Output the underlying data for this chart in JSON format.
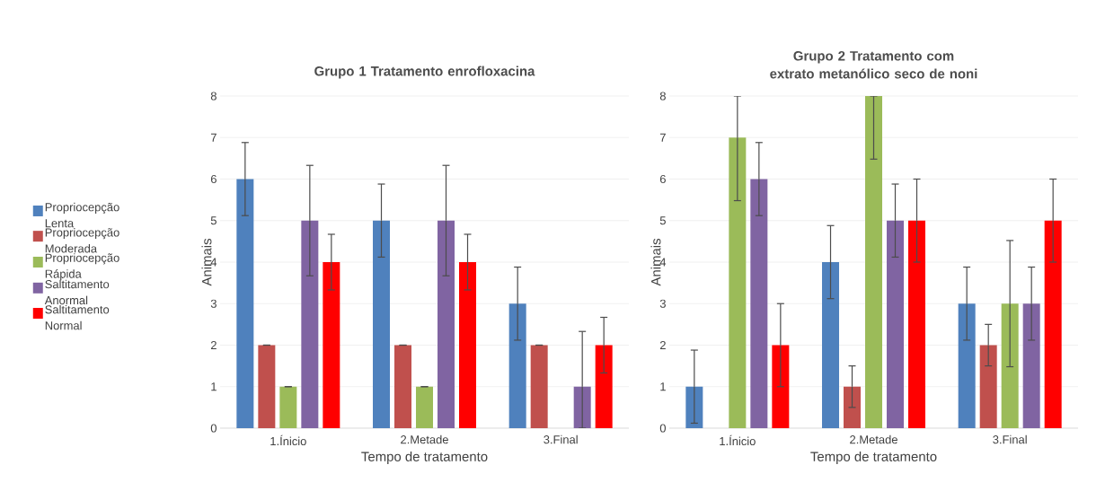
{
  "chart_data": [
    {
      "type": "bar",
      "title": "Grupo 1 Tratamento enrofloxacina",
      "xlabel": "Tempo de tratamento",
      "ylabel": "Animais",
      "categories": [
        "1.Ínicio",
        "2.Metade",
        "3.Final"
      ],
      "ylim": [
        0,
        8
      ],
      "yticks": [
        0,
        1,
        2,
        3,
        4,
        5,
        6,
        7,
        8
      ],
      "grid": "y",
      "legend": "left",
      "series": [
        {
          "name": "Propriocepção Lenta",
          "color": "#4f81bd",
          "values": [
            6,
            5,
            3
          ],
          "errors": [
            0.88,
            0.88,
            0.88
          ]
        },
        {
          "name": "Propriocepção Moderada",
          "color": "#c0504d",
          "values": [
            2,
            2,
            2
          ],
          "errors": [
            0,
            0,
            0
          ]
        },
        {
          "name": "Propriocepção Rápida",
          "color": "#9bbb59",
          "values": [
            1,
            1,
            0
          ],
          "errors": [
            0,
            0,
            null
          ]
        },
        {
          "name": "Saltitamento Anormal",
          "color": "#8064a2",
          "values": [
            5,
            5,
            1
          ],
          "errors": [
            1.33,
            1.33,
            [
              0,
              2.33
            ]
          ]
        },
        {
          "name": "Saltitamento Normal",
          "color": "#ff0000",
          "values": [
            4,
            4,
            2
          ],
          "errors": [
            0.67,
            0.67,
            0.67
          ]
        }
      ]
    },
    {
      "type": "bar",
      "title": "Grupo 2 Tratamento com extrato metanólico seco de noni",
      "xlabel": "Tempo de tratamento",
      "ylabel": "Animais",
      "categories": [
        "1.Ínicio",
        "2.Metade",
        "3.Final"
      ],
      "ylim": [
        0,
        8
      ],
      "yticks": [
        0,
        1,
        2,
        3,
        4,
        5,
        6,
        7,
        8
      ],
      "grid": "y",
      "series": [
        {
          "color": "#4f81bd",
          "values": [
            1,
            4,
            3
          ],
          "errors": [
            0.88,
            0.88,
            0.88
          ]
        },
        {
          "color": "#c0504d",
          "values": [
            0,
            1,
            2
          ],
          "errors": [
            null,
            0.5,
            0.5
          ]
        },
        {
          "color": "#9bbb59",
          "values": [
            7,
            8,
            3
          ],
          "errors": [
            [
              5.48,
              8
            ],
            [
              6.48,
              8
            ],
            1.52
          ]
        },
        {
          "color": "#8064a2",
          "values": [
            6,
            5,
            3
          ],
          "errors": [
            0.88,
            0.88,
            0.88
          ]
        },
        {
          "color": "#ff0000",
          "values": [
            2,
            5,
            5
          ],
          "errors": [
            1,
            1,
            1
          ]
        }
      ]
    }
  ]
}
